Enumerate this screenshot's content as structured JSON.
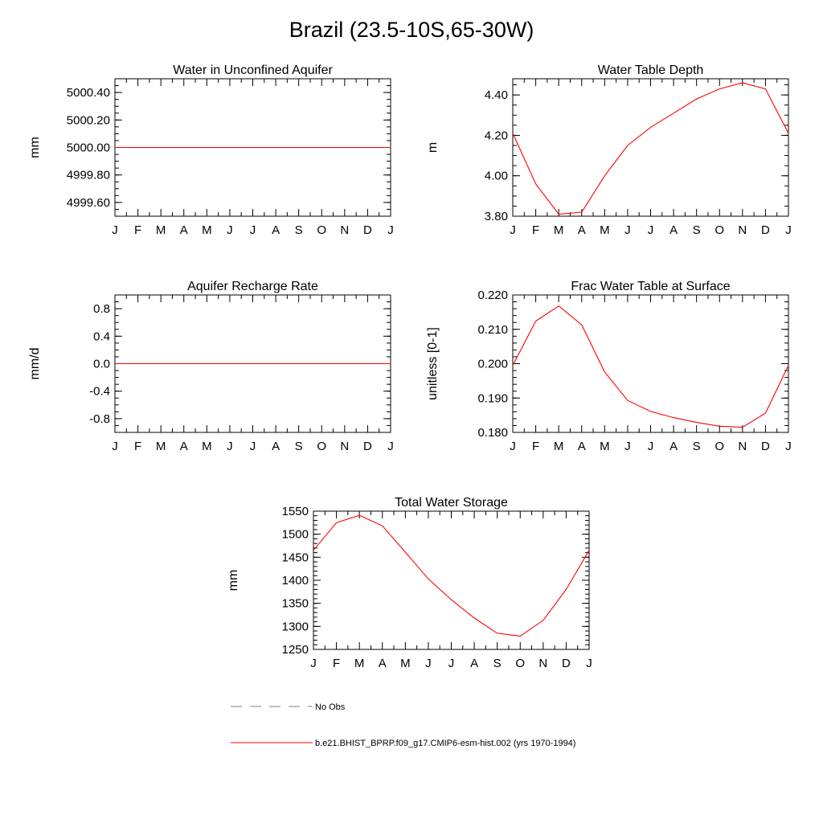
{
  "page": {
    "title": "Brazil (23.5-10S,65-30W)"
  },
  "chart_data": [
    {
      "type": "line",
      "title": "Water in Unconfined Aquifer",
      "ylabel": "mm",
      "xlabel": "",
      "x": [
        "J",
        "F",
        "M",
        "A",
        "M",
        "J",
        "J",
        "A",
        "S",
        "O",
        "N",
        "D",
        "J"
      ],
      "ylim": [
        4999.5,
        5000.5
      ],
      "yticks": [
        4999.6,
        4999.8,
        5000.0,
        5000.2,
        5000.4
      ],
      "ytick_labels": [
        "4999.60",
        "4999.80",
        "5000.00",
        "5000.20",
        "5000.40"
      ],
      "yminor": 0.05,
      "series": [
        {
          "values": [
            5000,
            5000,
            5000,
            5000,
            5000,
            5000,
            5000,
            5000,
            5000,
            5000,
            5000,
            5000,
            5000
          ],
          "color": "#ff0000"
        }
      ]
    },
    {
      "type": "line",
      "title": "Water Table Depth",
      "ylabel": "m",
      "xlabel": "",
      "x": [
        "J",
        "F",
        "M",
        "A",
        "M",
        "J",
        "J",
        "A",
        "S",
        "O",
        "N",
        "D",
        "J"
      ],
      "ylim": [
        3.8,
        4.48
      ],
      "yticks": [
        3.8,
        4.0,
        4.2,
        4.4
      ],
      "ytick_labels": [
        "3.80",
        "4.00",
        "4.20",
        "4.40"
      ],
      "yminor": 0.05,
      "series": [
        {
          "values": [
            4.21,
            3.96,
            3.81,
            3.82,
            4.0,
            4.15,
            4.24,
            4.31,
            4.38,
            4.43,
            4.46,
            4.43,
            4.21
          ],
          "color": "#ff0000"
        }
      ]
    },
    {
      "type": "line",
      "title": "Aquifer Recharge Rate",
      "ylabel": "mm/d",
      "xlabel": "",
      "x": [
        "J",
        "F",
        "M",
        "A",
        "M",
        "J",
        "J",
        "A",
        "S",
        "O",
        "N",
        "D",
        "J"
      ],
      "ylim": [
        -1.0,
        1.0
      ],
      "yticks": [
        -0.8,
        -0.4,
        0.0,
        0.4,
        0.8
      ],
      "ytick_labels": [
        "-0.8",
        "-0.4",
        "0.0",
        "0.4",
        "0.8"
      ],
      "yminor": 0.1,
      "series": [
        {
          "values": [
            0,
            0,
            0,
            0,
            0,
            0,
            0,
            0,
            0,
            0,
            0,
            0,
            0
          ],
          "color": "#ff0000"
        }
      ]
    },
    {
      "type": "line",
      "title": "Frac Water Table at Surface",
      "ylabel": "unitless [0-1]",
      "xlabel": "",
      "x": [
        "J",
        "F",
        "M",
        "A",
        "M",
        "J",
        "J",
        "A",
        "S",
        "O",
        "N",
        "D",
        "J"
      ],
      "ylim": [
        0.18,
        0.22
      ],
      "yticks": [
        0.18,
        0.19,
        0.2,
        0.21,
        0.22
      ],
      "ytick_labels": [
        "0.180",
        "0.190",
        "0.200",
        "0.210",
        "0.220"
      ],
      "yminor": 0.002,
      "series": [
        {
          "values": [
            0.1995,
            0.2124,
            0.2168,
            0.2113,
            0.1976,
            0.1893,
            0.1861,
            0.1843,
            0.1829,
            0.1818,
            0.1815,
            0.1856,
            0.1995
          ],
          "color": "#ff0000"
        }
      ]
    },
    {
      "type": "line",
      "title": "Total Water Storage",
      "ylabel": "mm",
      "xlabel": "",
      "x": [
        "J",
        "F",
        "M",
        "A",
        "M",
        "J",
        "J",
        "A",
        "S",
        "O",
        "N",
        "D",
        "J"
      ],
      "ylim": [
        1250,
        1550
      ],
      "yticks": [
        1250,
        1300,
        1350,
        1400,
        1450,
        1500,
        1550
      ],
      "ytick_labels": [
        "1250",
        "1300",
        "1350",
        "1400",
        "1450",
        "1500",
        "1550"
      ],
      "yminor": 10,
      "series": [
        {
          "values": [
            1465,
            1525,
            1541,
            1518,
            1461,
            1403,
            1358,
            1318,
            1285,
            1279,
            1313,
            1380,
            1465
          ],
          "color": "#ff0000"
        }
      ]
    }
  ],
  "legend": {
    "items": [
      {
        "label": "No Obs",
        "style": "dashed",
        "color": "#808080"
      },
      {
        "label": "b.e21.BHIST_BPRP.f09_g17.CMIP6-esm-hist.002 (yrs 1970-1994)",
        "style": "solid",
        "color": "#ff0000"
      }
    ]
  }
}
